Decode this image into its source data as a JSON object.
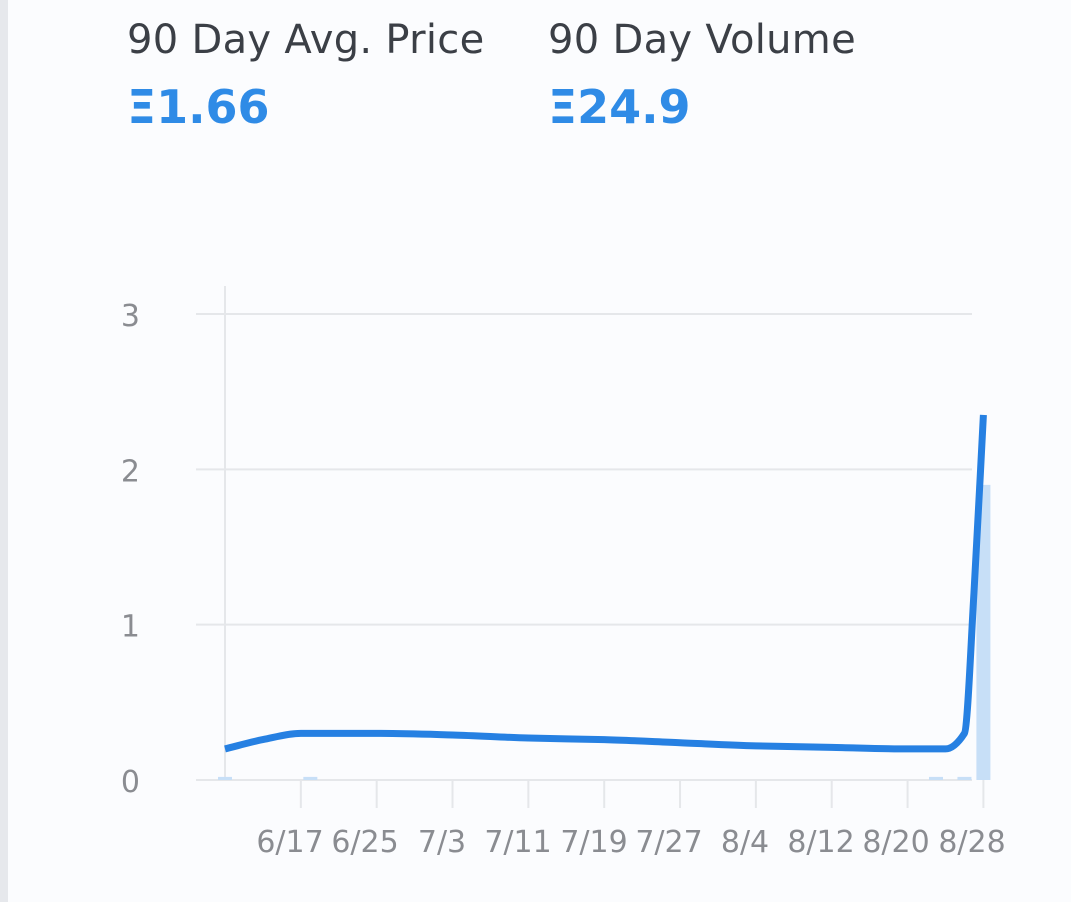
{
  "stats": {
    "avg_price_label": "90 Day Avg. Price",
    "avg_price_value": "Ξ1.66",
    "volume_label": "90 Day Volume",
    "volume_value": "Ξ24.9"
  },
  "colors": {
    "accent": "#2f8be6",
    "line": "#2680e2",
    "bars": "#c7dff7",
    "grid": "#e5e7ea",
    "axis_text": "#8a8c91",
    "label_text": "#3b3f46"
  },
  "chart_data": {
    "type": "line",
    "title": "",
    "xlabel": "",
    "ylabel": "",
    "ylim": [
      0,
      3
    ],
    "y_ticks": [
      "0",
      "1",
      "2",
      "3"
    ],
    "x_ticks": [
      "6/17",
      "6/25",
      "7/3",
      "7/11",
      "7/19",
      "7/27",
      "8/4",
      "8/12",
      "8/20",
      "8/28"
    ],
    "grid": true,
    "series": [
      {
        "kind": "line",
        "points": [
          [
            "6/9",
            0.2
          ],
          [
            "6/13",
            0.26
          ],
          [
            "6/17",
            0.3
          ],
          [
            "6/25",
            0.3
          ],
          [
            "7/3",
            0.29
          ],
          [
            "7/11",
            0.27
          ],
          [
            "7/19",
            0.26
          ],
          [
            "7/27",
            0.24
          ],
          [
            "8/4",
            0.22
          ],
          [
            "8/12",
            0.21
          ],
          [
            "8/20",
            0.2
          ],
          [
            "8/24",
            0.2
          ],
          [
            "8/26",
            0.3
          ],
          [
            "8/27",
            1.2
          ],
          [
            "8/28",
            2.35
          ]
        ]
      },
      {
        "kind": "bar",
        "points": [
          [
            "6/9",
            0.02
          ],
          [
            "6/18",
            0.02
          ],
          [
            "8/23",
            0.02
          ],
          [
            "8/26",
            0.02
          ],
          [
            "8/28",
            1.9
          ]
        ]
      }
    ]
  }
}
